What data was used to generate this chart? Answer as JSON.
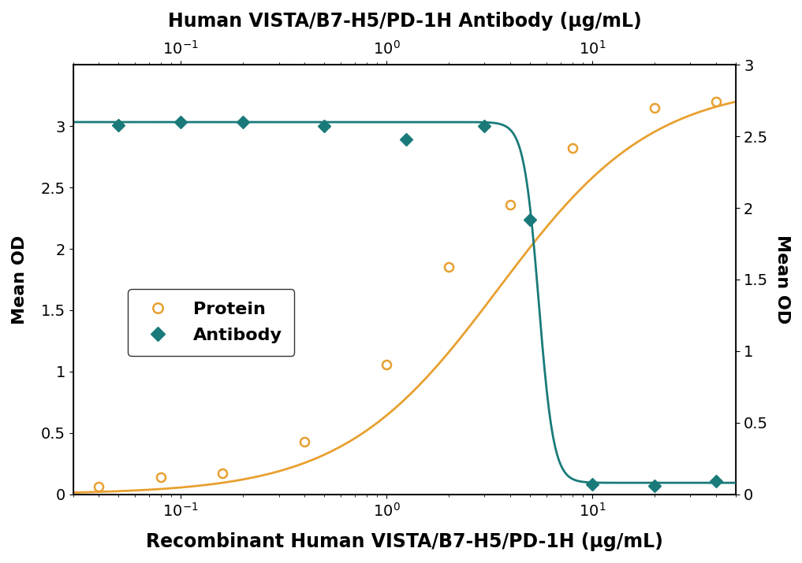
{
  "title_top": "Human VISTA/B7-H5/PD-1H Antibody (μg/mL)",
  "title_bottom": "Recombinant Human VISTA/B7-H5/PD-1H (μg/mL)",
  "ylabel_left": "Mean OD",
  "ylabel_right": "Mean OD",
  "protein_x": [
    0.04,
    0.08,
    0.16,
    0.4,
    1.0,
    2.0,
    4.0,
    8.0,
    20.0,
    40.0
  ],
  "protein_y": [
    0.06,
    0.14,
    0.17,
    0.43,
    1.06,
    1.85,
    2.36,
    2.82,
    3.15,
    3.2
  ],
  "antibody_x": [
    0.05,
    0.1,
    0.2,
    0.5,
    1.25,
    3.0,
    5.0,
    10.0,
    20.0,
    40.0
  ],
  "antibody_y": [
    2.58,
    2.6,
    2.6,
    2.57,
    2.48,
    2.57,
    1.92,
    0.07,
    0.06,
    0.09
  ],
  "protein_color": "#E8A030",
  "antibody_color": "#1A7A7A",
  "xlim": [
    0.03,
    50
  ],
  "ylim_left": [
    0.0,
    3.5
  ],
  "ylim_right": [
    0.0,
    3.0
  ],
  "yticks_left": [
    0.0,
    0.5,
    1.0,
    1.5,
    2.0,
    2.5,
    3.0
  ],
  "yticks_right": [
    0.0,
    0.5,
    1.0,
    1.5,
    2.0,
    2.5,
    3.0
  ],
  "protein_4pl": [
    0.0,
    3.35,
    3.5,
    1.15
  ],
  "antibody_4pl": [
    0.08,
    2.6,
    5.5,
    12.0
  ],
  "legend_protein": "Protein",
  "legend_antibody": "Antibody",
  "background_color": "#ffffff",
  "title_fontsize": 17,
  "label_fontsize": 16,
  "tick_fontsize": 14
}
